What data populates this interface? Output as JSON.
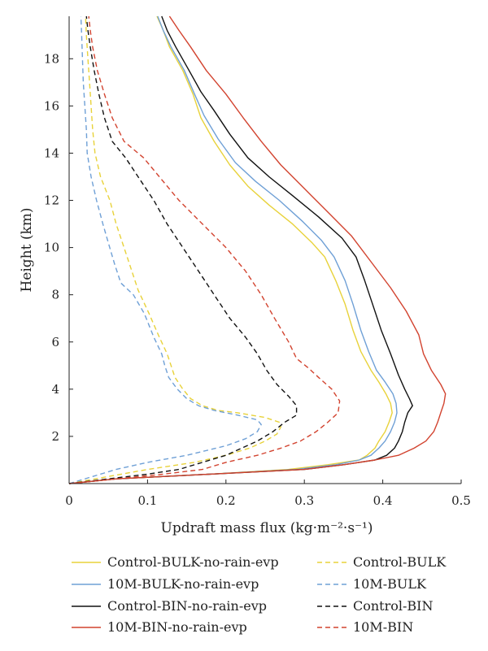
{
  "chart_data": {
    "type": "line",
    "xlabel": "Updraft mass flux (kg·m⁻²·s⁻¹)",
    "ylabel": "Height (km)",
    "xlim": [
      0,
      0.5
    ],
    "ylim": [
      0,
      19.8
    ],
    "xticks": [
      "0",
      "0.1",
      "0.2",
      "0.3",
      "0.4",
      "0.5"
    ],
    "yticks": [
      "2",
      "4",
      "6",
      "8",
      "10",
      "12",
      "14",
      "16",
      "18"
    ],
    "grid": false,
    "legend_position": "bottom",
    "series": [
      {
        "name": "Control-BULK-no-rain-evp",
        "color": "#e8d23a",
        "dash": "solid",
        "points": [
          [
            0.0,
            0
          ],
          [
            0.06,
            0.2
          ],
          [
            0.18,
            0.4
          ],
          [
            0.28,
            0.6
          ],
          [
            0.33,
            0.8
          ],
          [
            0.37,
            1.0
          ],
          [
            0.38,
            1.2
          ],
          [
            0.39,
            1.5
          ],
          [
            0.395,
            1.8
          ],
          [
            0.403,
            2.2
          ],
          [
            0.408,
            2.6
          ],
          [
            0.412,
            3.0
          ],
          [
            0.41,
            3.4
          ],
          [
            0.404,
            3.8
          ],
          [
            0.395,
            4.3
          ],
          [
            0.385,
            4.8
          ],
          [
            0.372,
            5.6
          ],
          [
            0.362,
            6.5
          ],
          [
            0.352,
            7.6
          ],
          [
            0.34,
            8.6
          ],
          [
            0.326,
            9.6
          ],
          [
            0.31,
            10.2
          ],
          [
            0.285,
            11.0
          ],
          [
            0.255,
            11.8
          ],
          [
            0.228,
            12.6
          ],
          [
            0.205,
            13.5
          ],
          [
            0.185,
            14.5
          ],
          [
            0.168,
            15.5
          ],
          [
            0.158,
            16.5
          ],
          [
            0.145,
            17.5
          ],
          [
            0.128,
            18.5
          ],
          [
            0.12,
            19.2
          ],
          [
            0.112,
            19.8
          ]
        ]
      },
      {
        "name": "10M-BULK-no-rain-evp",
        "color": "#6fa0d6",
        "dash": "solid",
        "points": [
          [
            0.0,
            0
          ],
          [
            0.06,
            0.2
          ],
          [
            0.18,
            0.4
          ],
          [
            0.29,
            0.6
          ],
          [
            0.34,
            0.8
          ],
          [
            0.37,
            1.0
          ],
          [
            0.385,
            1.2
          ],
          [
            0.395,
            1.5
          ],
          [
            0.403,
            1.8
          ],
          [
            0.41,
            2.2
          ],
          [
            0.415,
            2.6
          ],
          [
            0.418,
            3.0
          ],
          [
            0.417,
            3.4
          ],
          [
            0.413,
            3.8
          ],
          [
            0.403,
            4.3
          ],
          [
            0.392,
            4.8
          ],
          [
            0.382,
            5.6
          ],
          [
            0.372,
            6.5
          ],
          [
            0.362,
            7.6
          ],
          [
            0.352,
            8.6
          ],
          [
            0.338,
            9.6
          ],
          [
            0.322,
            10.3
          ],
          [
            0.298,
            11.1
          ],
          [
            0.268,
            12.0
          ],
          [
            0.238,
            12.8
          ],
          [
            0.212,
            13.6
          ],
          [
            0.19,
            14.6
          ],
          [
            0.172,
            15.6
          ],
          [
            0.16,
            16.5
          ],
          [
            0.147,
            17.5
          ],
          [
            0.13,
            18.5
          ],
          [
            0.12,
            19.2
          ],
          [
            0.113,
            19.8
          ]
        ]
      },
      {
        "name": "Control-BIN-no-rain-evp",
        "color": "#111111",
        "dash": "solid",
        "points": [
          [
            0.0,
            0
          ],
          [
            0.06,
            0.2
          ],
          [
            0.18,
            0.4
          ],
          [
            0.3,
            0.6
          ],
          [
            0.35,
            0.8
          ],
          [
            0.39,
            1.0
          ],
          [
            0.405,
            1.2
          ],
          [
            0.415,
            1.5
          ],
          [
            0.42,
            1.8
          ],
          [
            0.425,
            2.2
          ],
          [
            0.428,
            2.6
          ],
          [
            0.432,
            3.0
          ],
          [
            0.438,
            3.3
          ],
          [
            0.434,
            3.6
          ],
          [
            0.428,
            4.0
          ],
          [
            0.42,
            4.6
          ],
          [
            0.41,
            5.5
          ],
          [
            0.398,
            6.5
          ],
          [
            0.387,
            7.6
          ],
          [
            0.377,
            8.6
          ],
          [
            0.366,
            9.6
          ],
          [
            0.348,
            10.4
          ],
          [
            0.318,
            11.3
          ],
          [
            0.285,
            12.2
          ],
          [
            0.255,
            13.0
          ],
          [
            0.228,
            13.8
          ],
          [
            0.205,
            14.8
          ],
          [
            0.185,
            15.8
          ],
          [
            0.168,
            16.6
          ],
          [
            0.153,
            17.5
          ],
          [
            0.136,
            18.5
          ],
          [
            0.125,
            19.2
          ],
          [
            0.118,
            19.8
          ]
        ]
      },
      {
        "name": "10M-BIN-no-rain-evp",
        "color": "#d2432f",
        "dash": "solid",
        "points": [
          [
            0.0,
            0
          ],
          [
            0.06,
            0.2
          ],
          [
            0.18,
            0.4
          ],
          [
            0.3,
            0.6
          ],
          [
            0.35,
            0.8
          ],
          [
            0.39,
            1.0
          ],
          [
            0.42,
            1.2
          ],
          [
            0.44,
            1.5
          ],
          [
            0.455,
            1.8
          ],
          [
            0.465,
            2.2
          ],
          [
            0.47,
            2.6
          ],
          [
            0.474,
            3.0
          ],
          [
            0.478,
            3.4
          ],
          [
            0.48,
            3.8
          ],
          [
            0.474,
            4.2
          ],
          [
            0.462,
            4.8
          ],
          [
            0.452,
            5.5
          ],
          [
            0.446,
            6.3
          ],
          [
            0.43,
            7.3
          ],
          [
            0.41,
            8.3
          ],
          [
            0.385,
            9.4
          ],
          [
            0.36,
            10.5
          ],
          [
            0.33,
            11.5
          ],
          [
            0.3,
            12.5
          ],
          [
            0.27,
            13.5
          ],
          [
            0.245,
            14.5
          ],
          [
            0.222,
            15.5
          ],
          [
            0.2,
            16.5
          ],
          [
            0.175,
            17.5
          ],
          [
            0.155,
            18.5
          ],
          [
            0.14,
            19.2
          ],
          [
            0.128,
            19.8
          ]
        ]
      },
      {
        "name": "Control-BULK",
        "color": "#e8d23a",
        "dash": "dashed",
        "points": [
          [
            0.0,
            0
          ],
          [
            0.05,
            0.3
          ],
          [
            0.1,
            0.6
          ],
          [
            0.16,
            0.9
          ],
          [
            0.2,
            1.2
          ],
          [
            0.23,
            1.5
          ],
          [
            0.25,
            1.8
          ],
          [
            0.265,
            2.1
          ],
          [
            0.27,
            2.4
          ],
          [
            0.268,
            2.6
          ],
          [
            0.25,
            2.8
          ],
          [
            0.215,
            3.0
          ],
          [
            0.19,
            3.1
          ],
          [
            0.17,
            3.3
          ],
          [
            0.155,
            3.6
          ],
          [
            0.145,
            4.0
          ],
          [
            0.135,
            4.5
          ],
          [
            0.13,
            5.0
          ],
          [
            0.125,
            5.5
          ],
          [
            0.115,
            6.2
          ],
          [
            0.102,
            7.2
          ],
          [
            0.088,
            8.2
          ],
          [
            0.08,
            9.0
          ],
          [
            0.07,
            10.0
          ],
          [
            0.06,
            11.0
          ],
          [
            0.052,
            12.0
          ],
          [
            0.04,
            13.0
          ],
          [
            0.033,
            14.0
          ],
          [
            0.03,
            15.0
          ],
          [
            0.028,
            16.0
          ],
          [
            0.026,
            17.0
          ],
          [
            0.024,
            18.0
          ],
          [
            0.022,
            19.0
          ],
          [
            0.021,
            19.8
          ]
        ]
      },
      {
        "name": "10M-BULK",
        "color": "#6fa0d6",
        "dash": "dashed",
        "points": [
          [
            0.0,
            0
          ],
          [
            0.03,
            0.3
          ],
          [
            0.06,
            0.6
          ],
          [
            0.1,
            0.9
          ],
          [
            0.15,
            1.2
          ],
          [
            0.2,
            1.6
          ],
          [
            0.225,
            1.9
          ],
          [
            0.24,
            2.2
          ],
          [
            0.245,
            2.5
          ],
          [
            0.24,
            2.7
          ],
          [
            0.215,
            2.9
          ],
          [
            0.185,
            3.1
          ],
          [
            0.165,
            3.3
          ],
          [
            0.15,
            3.6
          ],
          [
            0.138,
            4.0
          ],
          [
            0.127,
            4.5
          ],
          [
            0.122,
            5.0
          ],
          [
            0.118,
            5.5
          ],
          [
            0.108,
            6.2
          ],
          [
            0.096,
            7.2
          ],
          [
            0.082,
            8.0
          ],
          [
            0.066,
            8.5
          ],
          [
            0.058,
            9.3
          ],
          [
            0.05,
            10.2
          ],
          [
            0.043,
            11.0
          ],
          [
            0.035,
            12.0
          ],
          [
            0.028,
            13.0
          ],
          [
            0.023,
            14.0
          ],
          [
            0.022,
            15.0
          ],
          [
            0.02,
            16.0
          ],
          [
            0.018,
            17.0
          ],
          [
            0.017,
            18.0
          ],
          [
            0.016,
            19.0
          ],
          [
            0.015,
            19.8
          ]
        ]
      },
      {
        "name": "Control-BIN",
        "color": "#111111",
        "dash": "dashed",
        "points": [
          [
            0.0,
            0
          ],
          [
            0.05,
            0.2
          ],
          [
            0.1,
            0.4
          ],
          [
            0.14,
            0.6
          ],
          [
            0.17,
            0.9
          ],
          [
            0.2,
            1.2
          ],
          [
            0.22,
            1.5
          ],
          [
            0.24,
            1.8
          ],
          [
            0.26,
            2.2
          ],
          [
            0.275,
            2.6
          ],
          [
            0.29,
            2.9
          ],
          [
            0.29,
            3.3
          ],
          [
            0.28,
            3.7
          ],
          [
            0.265,
            4.2
          ],
          [
            0.252,
            4.8
          ],
          [
            0.24,
            5.5
          ],
          [
            0.225,
            6.2
          ],
          [
            0.205,
            7.0
          ],
          [
            0.185,
            8.0
          ],
          [
            0.165,
            9.0
          ],
          [
            0.145,
            10.0
          ],
          [
            0.125,
            11.0
          ],
          [
            0.108,
            12.0
          ],
          [
            0.088,
            13.0
          ],
          [
            0.072,
            13.8
          ],
          [
            0.055,
            14.5
          ],
          [
            0.045,
            15.5
          ],
          [
            0.038,
            16.5
          ],
          [
            0.032,
            17.5
          ],
          [
            0.027,
            18.5
          ],
          [
            0.024,
            19.2
          ],
          [
            0.022,
            19.8
          ]
        ]
      },
      {
        "name": "10M-BIN",
        "color": "#d2432f",
        "dash": "dashed",
        "points": [
          [
            0.0,
            0
          ],
          [
            0.06,
            0.2
          ],
          [
            0.12,
            0.4
          ],
          [
            0.17,
            0.6
          ],
          [
            0.2,
            0.9
          ],
          [
            0.24,
            1.2
          ],
          [
            0.27,
            1.5
          ],
          [
            0.295,
            1.8
          ],
          [
            0.315,
            2.2
          ],
          [
            0.33,
            2.6
          ],
          [
            0.343,
            3.0
          ],
          [
            0.345,
            3.5
          ],
          [
            0.335,
            4.0
          ],
          [
            0.318,
            4.5
          ],
          [
            0.305,
            4.9
          ],
          [
            0.29,
            5.3
          ],
          [
            0.28,
            6.0
          ],
          [
            0.262,
            7.0
          ],
          [
            0.245,
            8.0
          ],
          [
            0.225,
            9.0
          ],
          [
            0.2,
            10.0
          ],
          [
            0.17,
            11.0
          ],
          [
            0.14,
            12.0
          ],
          [
            0.115,
            13.0
          ],
          [
            0.095,
            13.8
          ],
          [
            0.07,
            14.5
          ],
          [
            0.055,
            15.5
          ],
          [
            0.045,
            16.5
          ],
          [
            0.036,
            17.5
          ],
          [
            0.03,
            18.5
          ],
          [
            0.027,
            19.2
          ],
          [
            0.025,
            19.8
          ]
        ]
      }
    ]
  }
}
